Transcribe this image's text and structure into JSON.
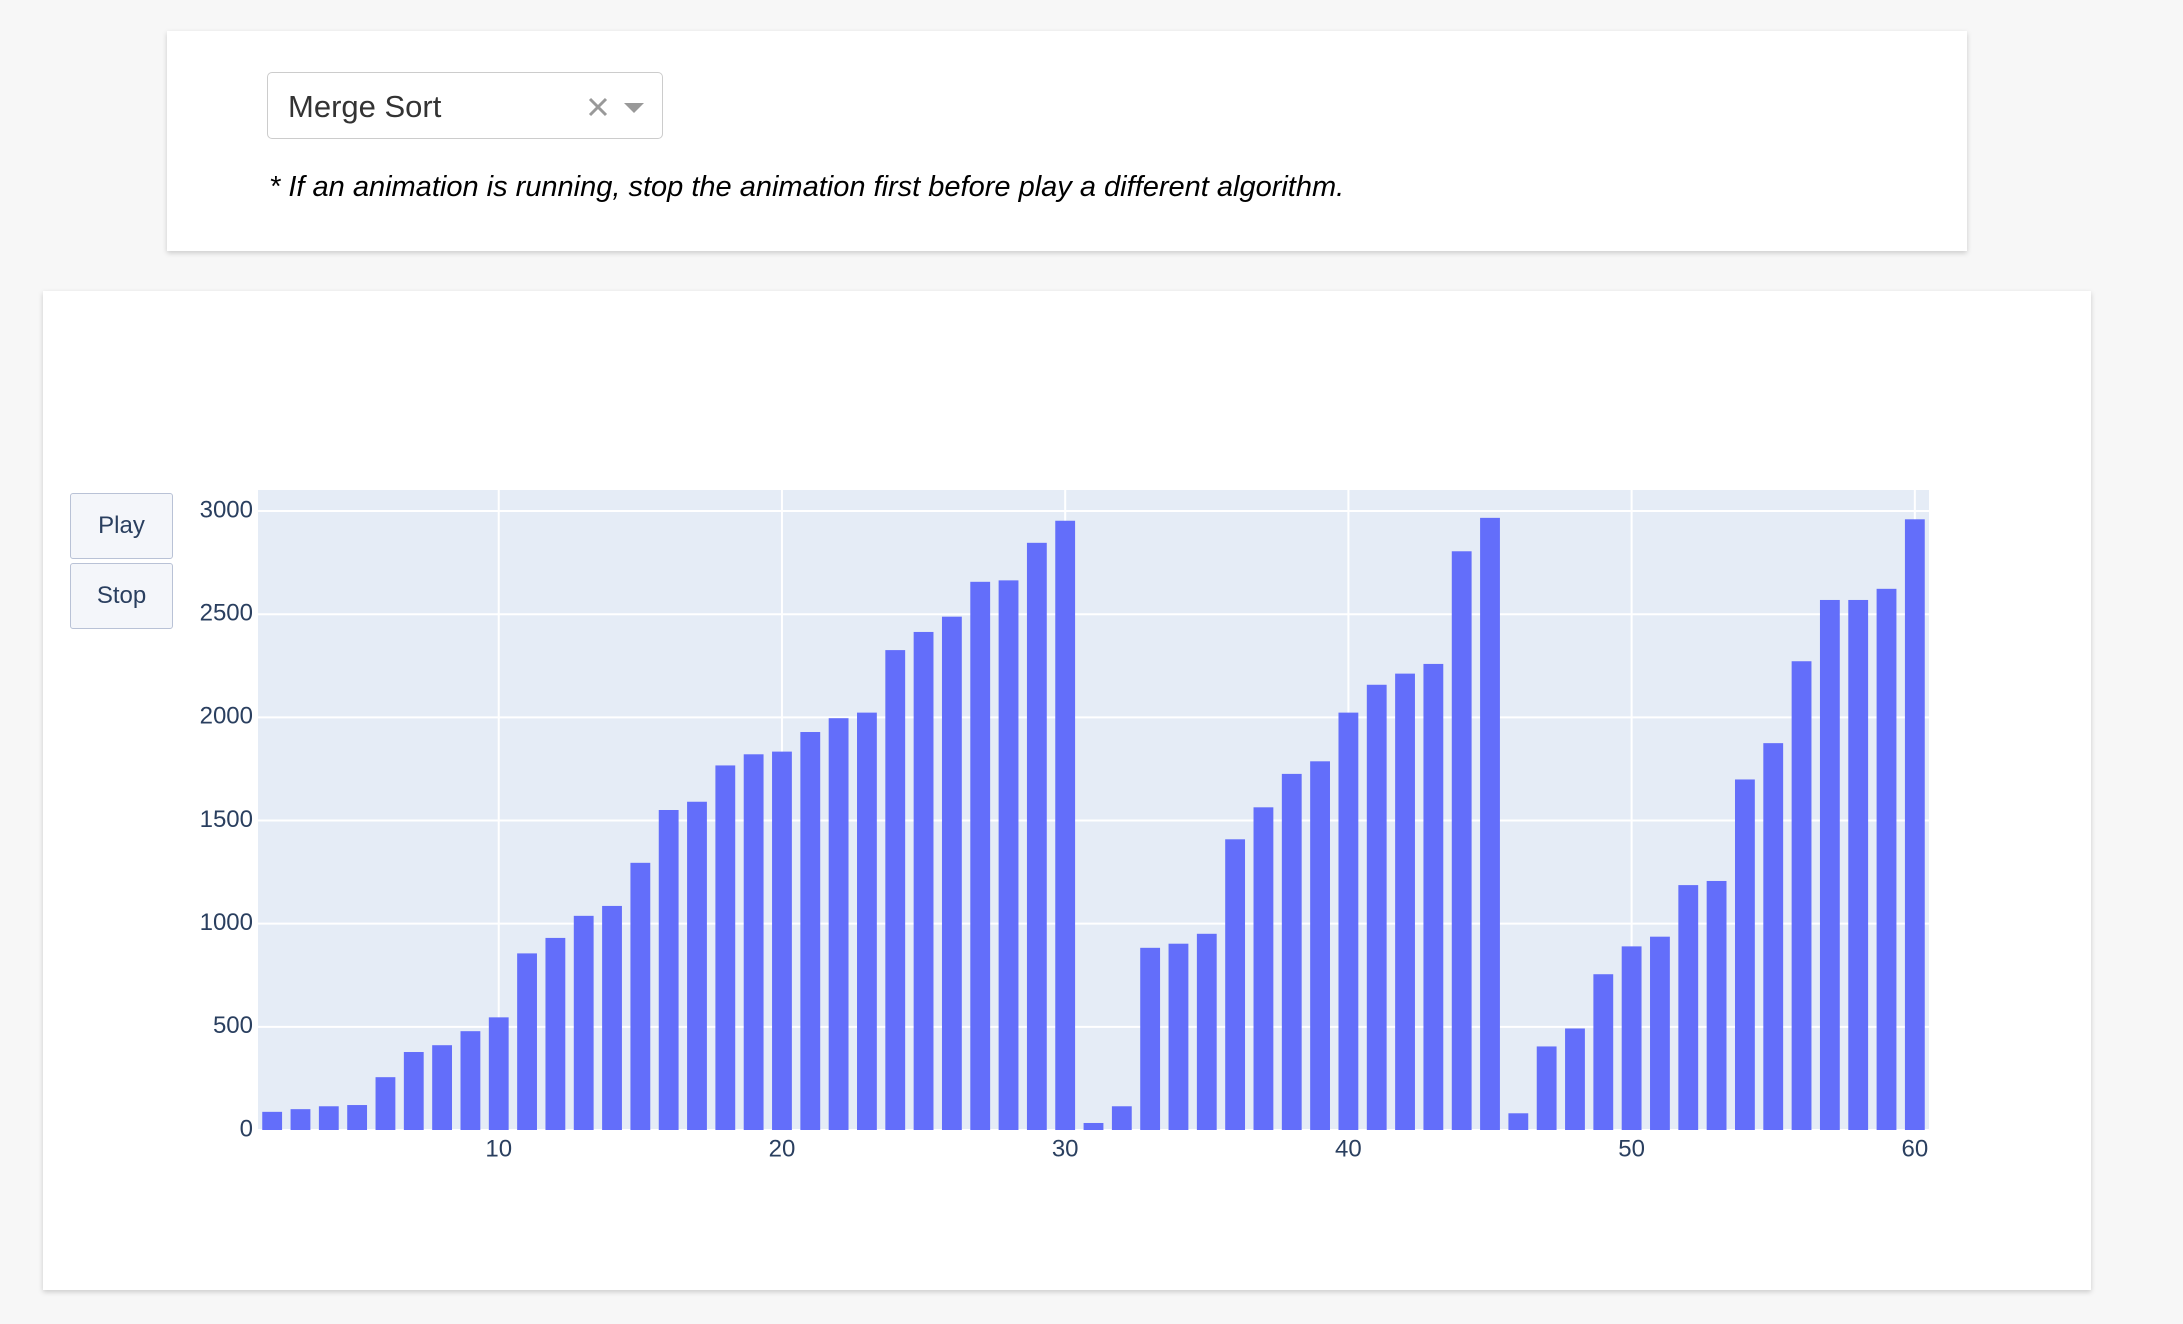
{
  "dropdown": {
    "value": "Merge Sort"
  },
  "note": "* If an animation is running, stop the animation first before play a different algorithm.",
  "buttons": [
    "Play",
    "Stop"
  ],
  "chart_data": {
    "type": "bar",
    "color": "#636efa",
    "grid": true,
    "x": [
      2,
      3,
      4,
      5,
      6,
      7,
      8,
      9,
      10,
      11,
      12,
      13,
      14,
      15,
      16,
      17,
      18,
      19,
      20,
      21,
      22,
      23,
      24,
      25,
      26,
      27,
      28,
      29,
      30,
      31,
      32,
      33,
      34,
      35,
      36,
      37,
      38,
      39,
      40,
      41,
      42,
      43,
      44,
      45,
      46,
      47,
      48,
      49,
      50,
      51,
      52,
      53,
      54,
      55,
      56,
      57,
      58,
      59,
      60
    ],
    "values": [
      88,
      101,
      115,
      121,
      256,
      378,
      411,
      479,
      546,
      856,
      931,
      1038,
      1086,
      1295,
      1551,
      1591,
      1767,
      1821,
      1834,
      1929,
      1996,
      2023,
      2326,
      2414,
      2488,
      2657,
      2664,
      2846,
      2953,
      34,
      115,
      883,
      903,
      951,
      1409,
      1564,
      1726,
      1787,
      2023,
      2158,
      2212,
      2259,
      2805,
      2967,
      81,
      405,
      492,
      755,
      890,
      937,
      1187,
      1207,
      1699,
      1875,
      2272,
      2569,
      2569,
      2623,
      2960
    ],
    "xlim": [
      1.5,
      60.5
    ],
    "xticks": [
      10,
      20,
      30,
      40,
      50,
      60
    ],
    "ylim": [
      0,
      3102
    ],
    "yticks": [
      0,
      500,
      1000,
      1500,
      2000,
      2500,
      3000
    ]
  }
}
